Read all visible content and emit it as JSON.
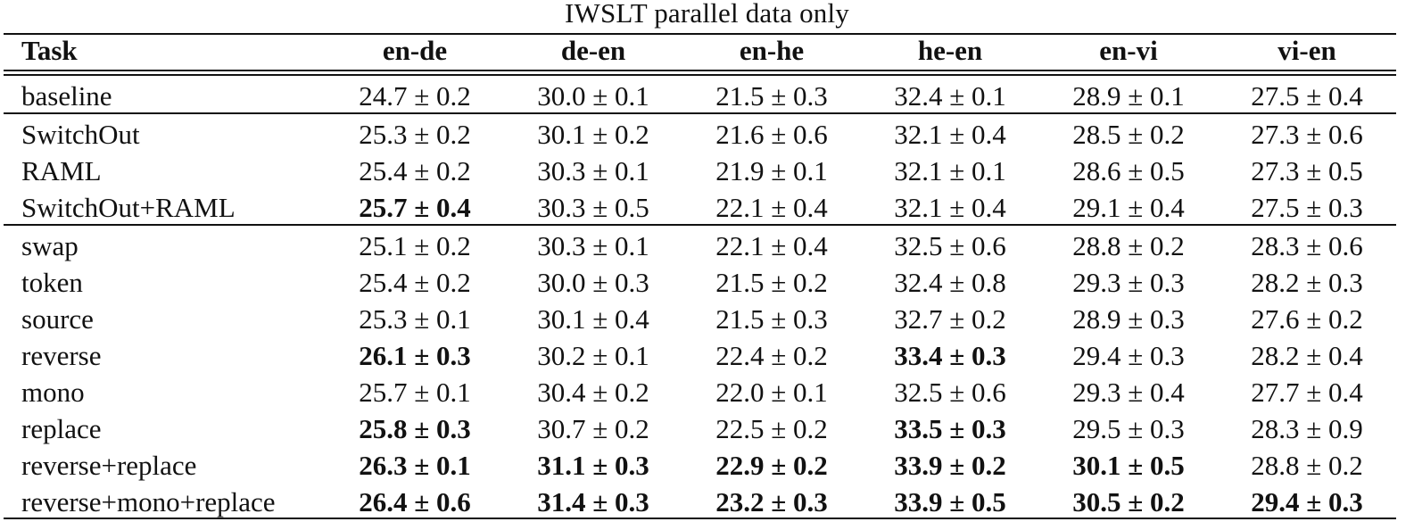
{
  "table": {
    "caption": "IWSLT parallel data only",
    "headers": [
      "Task",
      "en-de",
      "de-en",
      "en-he",
      "he-en",
      "en-vi",
      "vi-en"
    ],
    "groups": [
      [
        {
          "task": "baseline",
          "cells": [
            {
              "v": "24.7 ± 0.2",
              "b": false
            },
            {
              "v": "30.0 ± 0.1",
              "b": false
            },
            {
              "v": "21.5 ± 0.3",
              "b": false
            },
            {
              "v": "32.4 ± 0.1",
              "b": false
            },
            {
              "v": "28.9 ± 0.1",
              "b": false
            },
            {
              "v": "27.5 ± 0.4",
              "b": false
            }
          ]
        }
      ],
      [
        {
          "task": "SwitchOut",
          "cells": [
            {
              "v": "25.3 ± 0.2",
              "b": false
            },
            {
              "v": "30.1 ± 0.2",
              "b": false
            },
            {
              "v": "21.6 ± 0.6",
              "b": false
            },
            {
              "v": "32.1 ± 0.4",
              "b": false
            },
            {
              "v": "28.5 ± 0.2",
              "b": false
            },
            {
              "v": "27.3 ± 0.6",
              "b": false
            }
          ]
        },
        {
          "task": "RAML",
          "cells": [
            {
              "v": "25.4 ± 0.2",
              "b": false
            },
            {
              "v": "30.3 ± 0.1",
              "b": false
            },
            {
              "v": "21.9 ± 0.1",
              "b": false
            },
            {
              "v": "32.1 ± 0.1",
              "b": false
            },
            {
              "v": "28.6 ± 0.5",
              "b": false
            },
            {
              "v": "27.3 ± 0.5",
              "b": false
            }
          ]
        },
        {
          "task": "SwitchOut+RAML",
          "cells": [
            {
              "v": "25.7 ± 0.4",
              "b": true
            },
            {
              "v": "30.3 ± 0.5",
              "b": false
            },
            {
              "v": "22.1 ± 0.4",
              "b": false
            },
            {
              "v": "32.1 ± 0.4",
              "b": false
            },
            {
              "v": "29.1 ± 0.4",
              "b": false
            },
            {
              "v": "27.5 ± 0.3",
              "b": false
            }
          ]
        }
      ],
      [
        {
          "task": "swap",
          "cells": [
            {
              "v": "25.1 ± 0.2",
              "b": false
            },
            {
              "v": "30.3 ± 0.1",
              "b": false
            },
            {
              "v": "22.1 ± 0.4",
              "b": false
            },
            {
              "v": "32.5 ± 0.6",
              "b": false
            },
            {
              "v": "28.8 ± 0.2",
              "b": false
            },
            {
              "v": "28.3 ± 0.6",
              "b": false
            }
          ]
        },
        {
          "task": "token",
          "cells": [
            {
              "v": "25.4 ± 0.2",
              "b": false
            },
            {
              "v": "30.0 ± 0.3",
              "b": false
            },
            {
              "v": "21.5 ± 0.2",
              "b": false
            },
            {
              "v": "32.4 ± 0.8",
              "b": false
            },
            {
              "v": "29.3 ± 0.3",
              "b": false
            },
            {
              "v": "28.2 ± 0.3",
              "b": false
            }
          ]
        },
        {
          "task": "source",
          "cells": [
            {
              "v": "25.3 ± 0.1",
              "b": false
            },
            {
              "v": "30.1 ± 0.4",
              "b": false
            },
            {
              "v": "21.5 ± 0.3",
              "b": false
            },
            {
              "v": "32.7 ± 0.2",
              "b": false
            },
            {
              "v": "28.9 ± 0.3",
              "b": false
            },
            {
              "v": "27.6 ± 0.2",
              "b": false
            }
          ]
        },
        {
          "task": "reverse",
          "cells": [
            {
              "v": "26.1 ± 0.3",
              "b": true
            },
            {
              "v": "30.2 ± 0.1",
              "b": false
            },
            {
              "v": "22.4 ± 0.2",
              "b": false
            },
            {
              "v": "33.4 ± 0.3",
              "b": true
            },
            {
              "v": "29.4 ± 0.3",
              "b": false
            },
            {
              "v": "28.2 ± 0.4",
              "b": false
            }
          ]
        },
        {
          "task": "mono",
          "cells": [
            {
              "v": "25.7 ± 0.1",
              "b": false
            },
            {
              "v": "30.4 ± 0.2",
              "b": false
            },
            {
              "v": "22.0 ± 0.1",
              "b": false
            },
            {
              "v": "32.5 ± 0.6",
              "b": false
            },
            {
              "v": "29.3 ± 0.4",
              "b": false
            },
            {
              "v": "27.7 ± 0.4",
              "b": false
            }
          ]
        },
        {
          "task": "replace",
          "cells": [
            {
              "v": "25.8 ± 0.3",
              "b": true
            },
            {
              "v": "30.7 ± 0.2",
              "b": false
            },
            {
              "v": "22.5 ± 0.2",
              "b": false
            },
            {
              "v": "33.5 ± 0.3",
              "b": true
            },
            {
              "v": "29.5 ± 0.3",
              "b": false
            },
            {
              "v": "28.3 ± 0.9",
              "b": false
            }
          ]
        },
        {
          "task": "reverse+replace",
          "cells": [
            {
              "v": "26.3 ± 0.1",
              "b": true
            },
            {
              "v": "31.1 ± 0.3",
              "b": true
            },
            {
              "v": "22.9 ± 0.2",
              "b": true
            },
            {
              "v": "33.9 ± 0.2",
              "b": true
            },
            {
              "v": "30.1 ± 0.5",
              "b": true
            },
            {
              "v": "28.8 ± 0.2",
              "b": false
            }
          ]
        },
        {
          "task": "reverse+mono+replace",
          "cells": [
            {
              "v": "26.4 ± 0.6",
              "b": true
            },
            {
              "v": "31.4 ± 0.3",
              "b": true
            },
            {
              "v": "23.2 ± 0.3",
              "b": true
            },
            {
              "v": "33.9 ± 0.5",
              "b": true
            },
            {
              "v": "30.5 ± 0.2",
              "b": true
            },
            {
              "v": "29.4 ± 0.3",
              "b": true
            }
          ]
        }
      ]
    ]
  }
}
